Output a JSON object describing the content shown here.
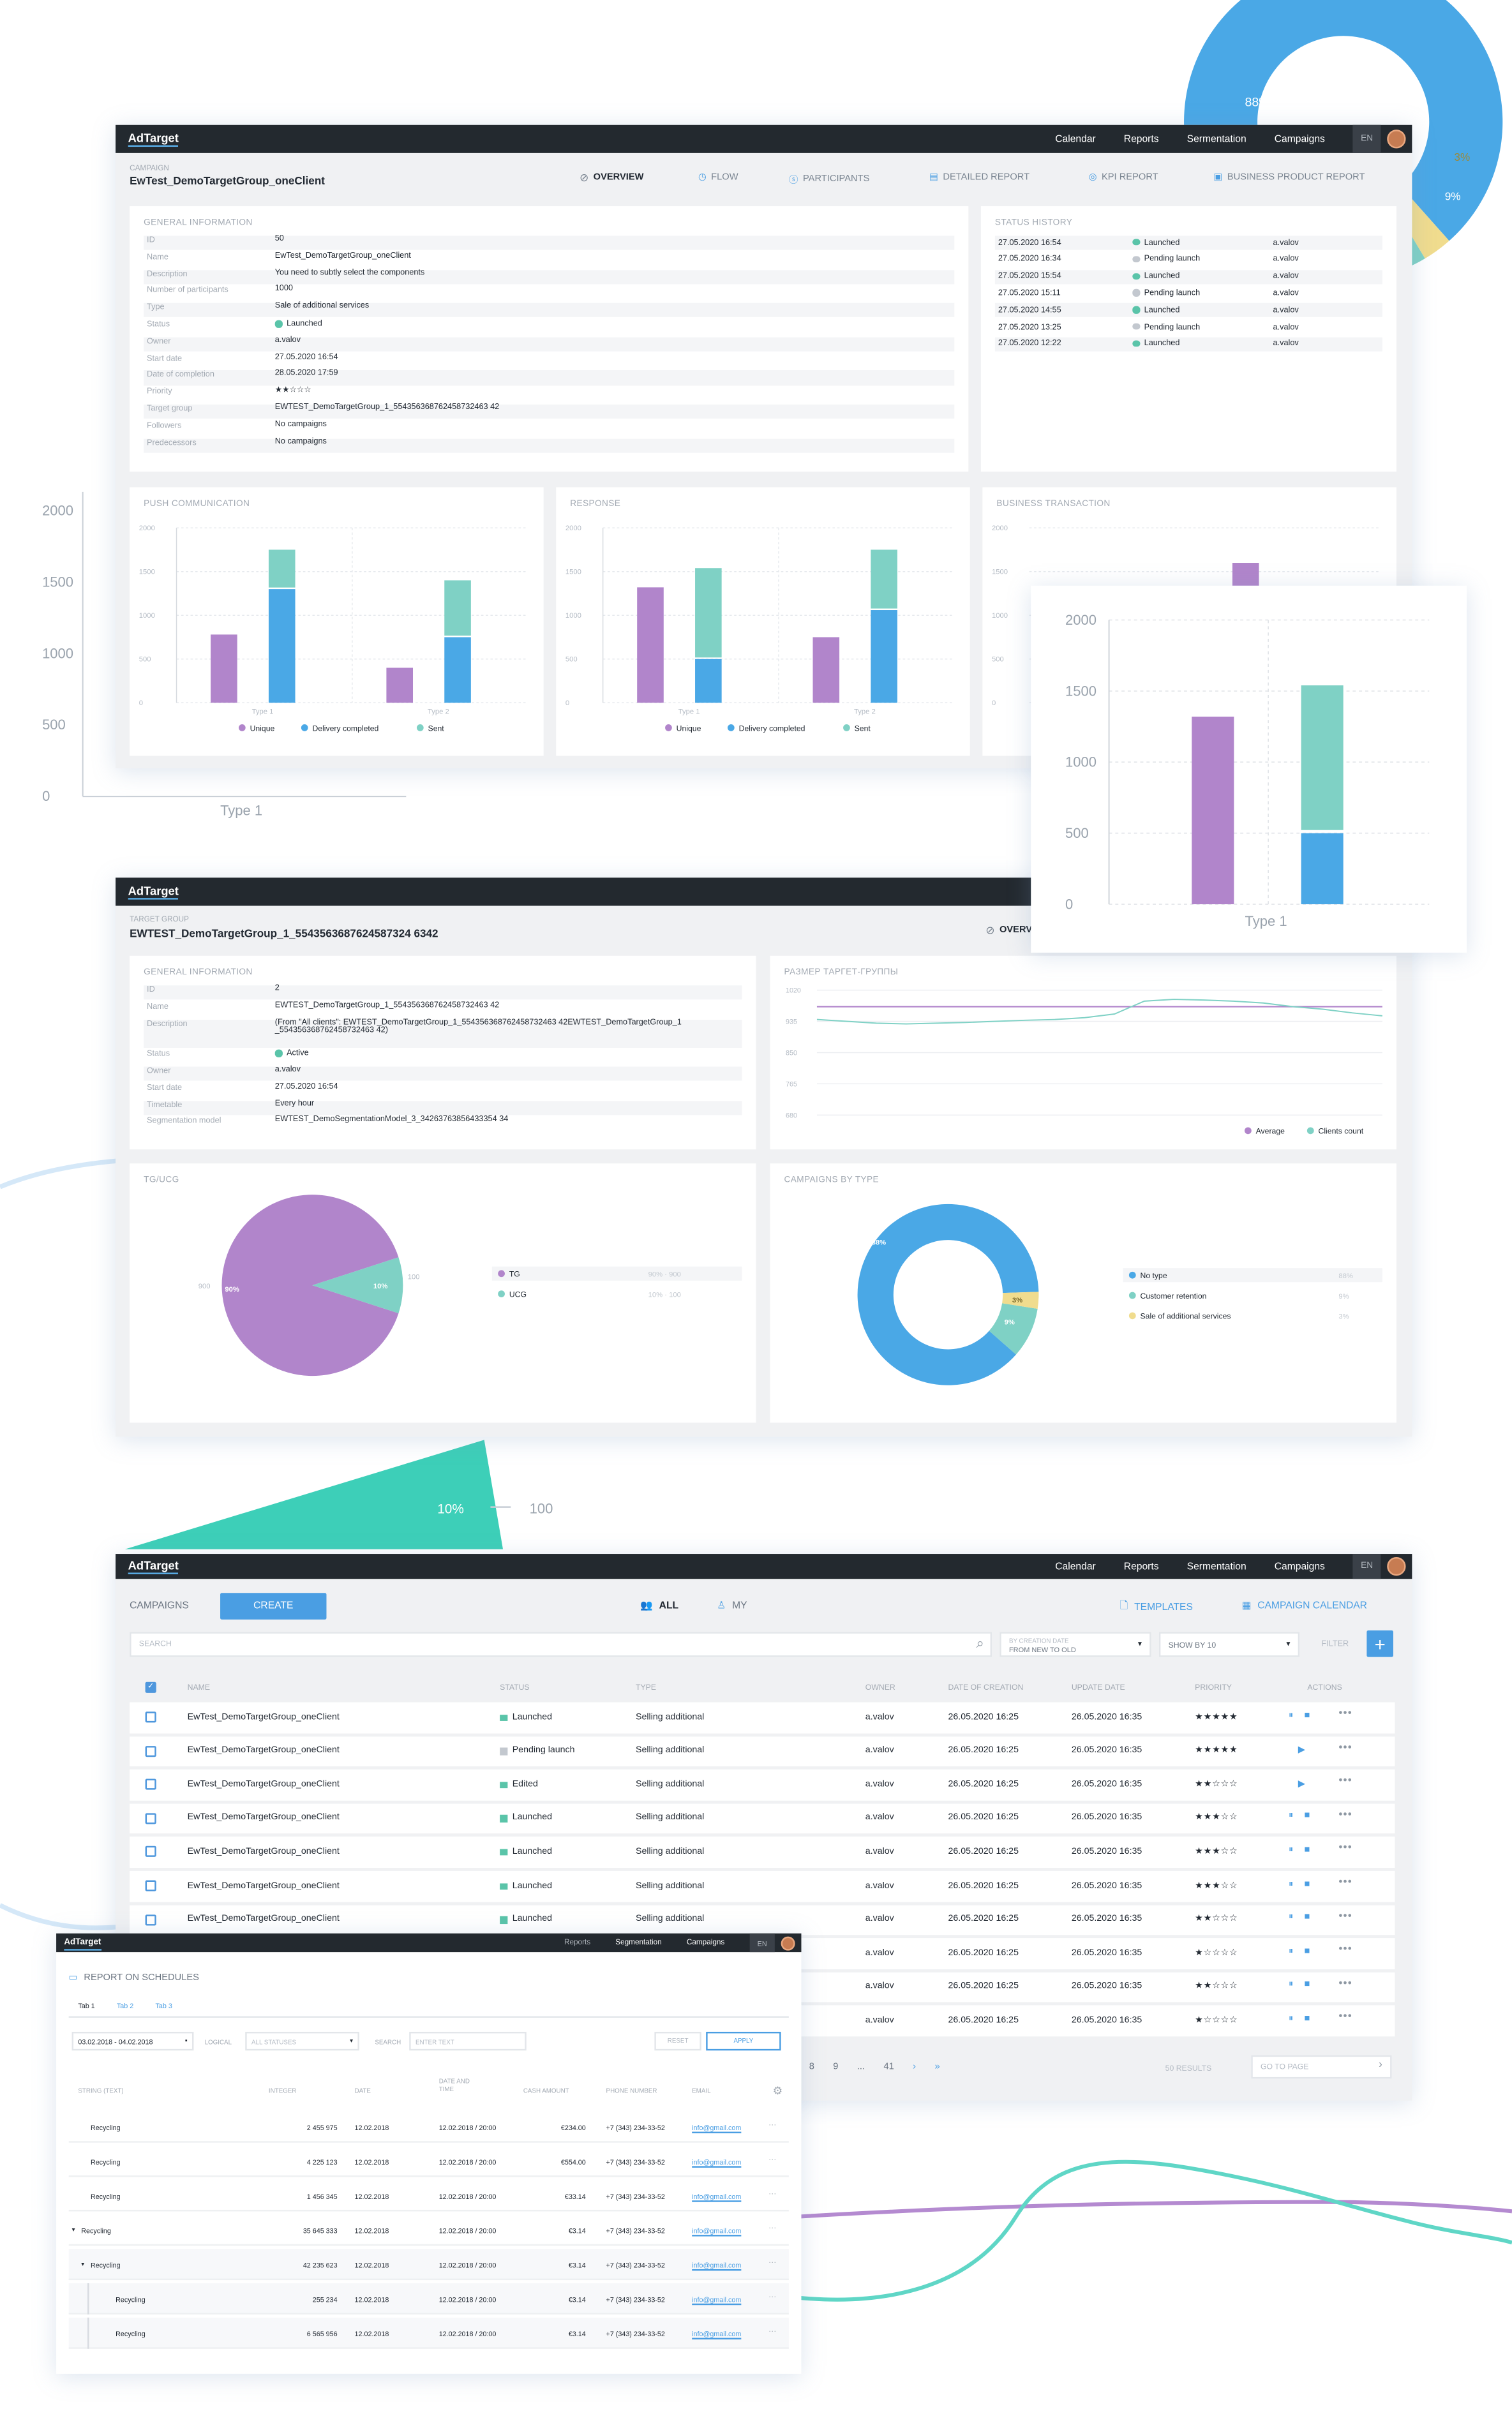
{
  "app": {
    "logo": "AdTarget",
    "lang": "EN"
  },
  "nav": [
    "Calendar",
    "Reports",
    "Sermentation",
    "Campaigns"
  ],
  "colors": {
    "purple": "#b185cb",
    "blue": "#4aa8e6",
    "teal": "#7fd1c5",
    "yellow": "#f0dc8e",
    "dark": "#23292f",
    "accent": "#4a9ee3"
  },
  "campaign": {
    "label": "CAMPAIGN",
    "title": "EwTest_DemoTargetGroup_oneClient",
    "tabs": [
      "OVERVIEW",
      "FLOW",
      "PARTICIPANTS",
      "DETAILED REPORT",
      "KPI REPORT",
      "BUSINESS PRODUCT REPORT"
    ],
    "general_title": "GENERAL INFORMATION",
    "info": [
      {
        "k": "ID",
        "v": "50"
      },
      {
        "k": "Name",
        "v": "EwTest_DemoTargetGroup_oneClient"
      },
      {
        "k": "Description",
        "v": "You need to subtly select the components"
      },
      {
        "k": "Number of participants",
        "v": "1000"
      },
      {
        "k": "Type",
        "v": "Sale of additional services"
      },
      {
        "k": "Status",
        "v": "Launched"
      },
      {
        "k": "Owner",
        "v": "a.valov"
      },
      {
        "k": "Start date",
        "v": "27.05.2020   16:54"
      },
      {
        "k": "Date of completion",
        "v": "28.05.2020   17:59"
      },
      {
        "k": "Priority",
        "v": "★★☆☆☆"
      },
      {
        "k": "Target group",
        "v": "EWTEST_DemoTargetGroup_1_554356368762458732463 42"
      },
      {
        "k": "Followers",
        "v": "No campaigns"
      },
      {
        "k": "Predecessors",
        "v": "No campaigns"
      }
    ],
    "history_title": "STATUS HISTORY",
    "history": [
      {
        "date": "27.05.2020  16:54",
        "status": "Launched",
        "user": "a.valov"
      },
      {
        "date": "27.05.2020  16:34",
        "status": "Pending launch",
        "user": "a.valov"
      },
      {
        "date": "27.05.2020  15:54",
        "status": "Launched",
        "user": "a.valov"
      },
      {
        "date": "27.05.2020  15:11",
        "status": "Pending launch",
        "user": "a.valov"
      },
      {
        "date": "27.05.2020  14:55",
        "status": "Launched",
        "user": "a.valov"
      },
      {
        "date": "27.05.2020  13:25",
        "status": "Pending launch",
        "user": "a.valov"
      },
      {
        "date": "27.05.2020  12:22",
        "status": "Launched",
        "user": "a.valov"
      }
    ],
    "chart_titles": [
      "PUSH COMMUNICATION",
      "RESPONSE",
      "BUSINESS TRANSACTION"
    ],
    "legend": [
      "Unique",
      "Delivery completed",
      "Sent"
    ]
  },
  "chart_data": [
    {
      "type": "bar",
      "title": "PUSH COMMUNICATION",
      "categories": [
        "Type 1",
        "Type 2"
      ],
      "ylim": [
        0,
        2000
      ],
      "yticks": [
        "2000",
        "1500",
        "1000",
        "500",
        "0"
      ],
      "series": [
        {
          "name": "Unique",
          "values": [
            780,
            400
          ]
        },
        {
          "name": "Delivery completed",
          "values": [
            1300,
            750
          ]
        },
        {
          "name": "Sent",
          "values": [
            450,
            650
          ]
        }
      ]
    },
    {
      "type": "bar",
      "title": "RESPONSE",
      "categories": [
        "Type 1",
        "Type 2"
      ],
      "ylim": [
        0,
        2000
      ],
      "yticks": [
        "2000",
        "1500",
        "1000",
        "500",
        "0"
      ],
      "series": [
        {
          "name": "Unique",
          "values": [
            1320,
            750
          ]
        },
        {
          "name": "Delivery completed",
          "values": [
            500,
            1060
          ]
        },
        {
          "name": "Sent",
          "values": [
            1040,
            690
          ]
        }
      ]
    },
    {
      "type": "bar",
      "title": "BUSINESS TRANSACTION",
      "ylim": [
        0,
        2000
      ],
      "yticks": [
        "2000",
        "1500",
        "1000",
        "500",
        "0"
      ],
      "series": [
        {
          "name": "Unique",
          "values": [
            1320
          ]
        },
        {
          "name": "Delivery completed",
          "values": [
            500
          ]
        },
        {
          "name": "Sent",
          "values": [
            1040
          ]
        }
      ]
    },
    {
      "type": "line",
      "title": "РАЗМЕР ТАРГЕТ-ГРУППЫ",
      "yticks": [
        "1020",
        "935",
        "850",
        "765",
        "680"
      ],
      "ylim": [
        680,
        1020
      ],
      "series": [
        {
          "name": "Average",
          "values": [
            975,
            975,
            975,
            975,
            975,
            975,
            975,
            975,
            975,
            975,
            975,
            975,
            975,
            975,
            975,
            975,
            975,
            975,
            975,
            975
          ]
        },
        {
          "name": "Clients count",
          "values": [
            940,
            935,
            930,
            928,
            930,
            932,
            935,
            938,
            940,
            945,
            955,
            990,
            995,
            993,
            990,
            985,
            975,
            968,
            958,
            950
          ]
        }
      ]
    },
    {
      "type": "pie",
      "title": "TG/UCG",
      "labels": [
        "TG",
        "UCG"
      ],
      "values": [
        90,
        10
      ],
      "side_labels": [
        "900",
        "100"
      ],
      "legend_values": [
        "90% · 900",
        "10% · 100"
      ]
    },
    {
      "type": "pie",
      "title": "CAMPAIGNS BY TYPE",
      "labels": [
        "No type",
        "Customer retention",
        "Sale of additional services"
      ],
      "values": [
        88,
        9,
        3
      ]
    }
  ],
  "target": {
    "label": "TARGET GROUP",
    "title": "EWTEST_DemoTargetGroup_1_5543563687624587324 6342",
    "info": [
      {
        "k": "ID",
        "v": "2"
      },
      {
        "k": "Name",
        "v": "EWTEST_DemoTargetGroup_1_554356368762458732463 42"
      },
      {
        "k": "Description",
        "v": "(From \"All clients\": EWTEST_DemoTargetGroup_1_554356368762458732463 42EWTEST_DemoTargetGroup_1 _554356368762458732463 42)"
      },
      {
        "k": "Status",
        "v": "Active"
      },
      {
        "k": "Owner",
        "v": "a.valov"
      },
      {
        "k": "Start date",
        "v": "27.05.2020   16:54"
      },
      {
        "k": "Timetable",
        "v": "Every hour"
      },
      {
        "k": "Segmentation model",
        "v": "EWTEST_DemoSegmentationModel_3_34263763856433354 34"
      }
    ],
    "legend_line": [
      "Average",
      "Clients count"
    ]
  },
  "list": {
    "title": "CAMPAIGNS",
    "create": "CREATE",
    "all": "ALL",
    "my": "MY",
    "templates": "TEMPLATES",
    "calendar": "CAMPAIGN CALENDAR",
    "search_placeholder": "SEARCH",
    "sort_label": "BY CREATION DATE",
    "sort_value": "FROM NEW TO OLD",
    "show": "SHOW BY 10",
    "filter": "FILTER",
    "columns": [
      "NAME",
      "STATUS",
      "TYPE",
      "OWNER",
      "DATE OF CREATION",
      "UPDATE DATE",
      "PRIORITY",
      "ACTIONS"
    ],
    "rows": [
      {
        "name": "EwTest_DemoTargetGroup_oneClient",
        "status": "Launched",
        "type": "Selling additional",
        "owner": "a.valov",
        "created": "26.05.2020  16:25",
        "updated": "26.05.2020  16:35",
        "priority": "★★★★★"
      },
      {
        "name": "EwTest_DemoTargetGroup_oneClient",
        "status": "Pending launch",
        "type": "Selling additional",
        "owner": "a.valov",
        "created": "26.05.2020  16:25",
        "updated": "26.05.2020  16:35",
        "priority": "★★★★★"
      },
      {
        "name": "EwTest_DemoTargetGroup_oneClient",
        "status": "Edited",
        "type": "Selling additional",
        "owner": "a.valov",
        "created": "26.05.2020  16:25",
        "updated": "26.05.2020  16:35",
        "priority": "★★☆☆☆"
      },
      {
        "name": "EwTest_DemoTargetGroup_oneClient",
        "status": "Launched",
        "type": "Selling additional",
        "owner": "a.valov",
        "created": "26.05.2020  16:25",
        "updated": "26.05.2020  16:35",
        "priority": "★★★☆☆"
      },
      {
        "name": "EwTest_DemoTargetGroup_oneClient",
        "status": "Launched",
        "type": "Selling additional",
        "owner": "a.valov",
        "created": "26.05.2020  16:25",
        "updated": "26.05.2020  16:35",
        "priority": "★★★☆☆"
      },
      {
        "name": "EwTest_DemoTargetGroup_oneClient",
        "status": "Launched",
        "type": "Selling additional",
        "owner": "a.valov",
        "created": "26.05.2020  16:25",
        "updated": "26.05.2020  16:35",
        "priority": "★★★☆☆"
      },
      {
        "name": "EwTest_DemoTargetGroup_oneClient",
        "status": "Launched",
        "type": "Selling additional",
        "owner": "a.valov",
        "created": "26.05.2020  16:25",
        "updated": "26.05.2020  16:35",
        "priority": "★★☆☆☆"
      },
      {
        "name": "",
        "status": "",
        "type": "",
        "owner": "a.valov",
        "created": "26.05.2020  16:25",
        "updated": "26.05.2020  16:35",
        "priority": "★☆☆☆☆"
      },
      {
        "name": "",
        "status": "",
        "type": "",
        "owner": "a.valov",
        "created": "26.05.2020  16:25",
        "updated": "26.05.2020  16:35",
        "priority": "★★☆☆☆"
      },
      {
        "name": "",
        "status": "",
        "type": "",
        "owner": "a.valov",
        "created": "26.05.2020  16:25",
        "updated": "26.05.2020  16:35",
        "priority": "★☆☆☆☆"
      }
    ],
    "pages": [
      "8",
      "9",
      "...",
      "41"
    ],
    "results": "50 RESULTS",
    "goto": "GO TO PAGE"
  },
  "report": {
    "title": "REPORT ON SCHEDULES",
    "tabs": [
      "Tab 1",
      "Tab 2",
      "Tab 3"
    ],
    "date_range": "03.02.2018 - 04.02.2018",
    "logical_label": "LOGICAL",
    "logical_value": "ALL STATUSES",
    "search_label": "SEARCH",
    "search_placeholder": "ENTER TEXT",
    "reset": "RESET",
    "apply": "APPLY",
    "columns": [
      "STRING (TEXT)",
      "INTEGER",
      "DATE",
      "DATE AND TIME",
      "CASH AMOUNT",
      "PHONE NUMBER",
      "EMAIL"
    ],
    "rows": [
      {
        "s": "Recycling",
        "i": "2 455 975",
        "d": "12.02.2018",
        "dt": "12.02.2018 / 20:00",
        "c": "€234.00",
        "p": "+7 (343) 234-33-52",
        "e": "info@gmail.com"
      },
      {
        "s": "Recycling",
        "i": "4 225 123",
        "d": "12.02.2018",
        "dt": "12.02.2018 / 20:00",
        "c": "€554.00",
        "p": "+7 (343) 234-33-52",
        "e": "info@gmail.com"
      },
      {
        "s": "Recycling",
        "i": "1 456 345",
        "d": "12.02.2018",
        "dt": "12.02.2018 / 20:00",
        "c": "€33.14",
        "p": "+7 (343) 234-33-52",
        "e": "info@gmail.com"
      },
      {
        "s": "Recycling",
        "i": "35 645 333",
        "d": "12.02.2018",
        "dt": "12.02.2018 / 20:00",
        "c": "€3.14",
        "p": "+7 (343) 234-33-52",
        "e": "info@gmail.com"
      },
      {
        "s": "Recycling",
        "i": "42 235 623",
        "d": "12.02.2018",
        "dt": "12.02.2018 / 20:00",
        "c": "€3.14",
        "p": "+7 (343) 234-33-52",
        "e": "info@gmail.com"
      },
      {
        "s": "Recycling",
        "i": "255 234",
        "d": "12.02.2018",
        "dt": "12.02.2018 / 20:00",
        "c": "€3.14",
        "p": "+7 (343) 234-33-52",
        "e": "info@gmail.com"
      },
      {
        "s": "Recycling",
        "i": "6 565 956",
        "d": "12.02.2018",
        "dt": "12.02.2018 / 20:00",
        "c": "€3.14",
        "p": "+7 (343) 234-33-52",
        "e": "info@gmail.com"
      }
    ],
    "nav": [
      "Reports",
      "Segmentation",
      "Campaigns"
    ]
  },
  "decor": {
    "donut_labels": [
      "88%",
      "3%",
      "9%"
    ],
    "big_axis": [
      "2000",
      "1500",
      "1000",
      "500",
      "0"
    ],
    "big_axis_cat": "Type 1",
    "zoom_axis": [
      "2000",
      "1500",
      "1000",
      "500",
      "0"
    ],
    "zoom_cat": "Type 1",
    "zoom_values": [
      {
        "name": "Unique",
        "value": 1320
      },
      {
        "name": "Delivery completed",
        "value": 500
      },
      {
        "name": "Sent",
        "value": 1040
      }
    ],
    "slice_label": "10%",
    "slice_value": "100"
  }
}
